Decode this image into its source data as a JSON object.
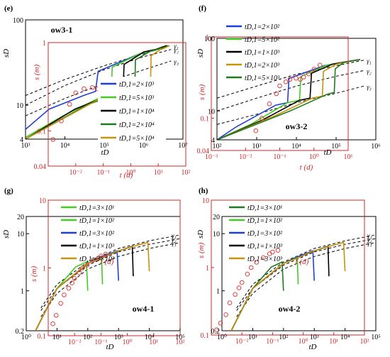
{
  "colors": {
    "red_axis": "#d62728",
    "obs_marker": "#e04040",
    "dashed": "#000000",
    "blue": "#1f3fd8",
    "light_green": "#44cc22",
    "black": "#000000",
    "dark_green": "#1e7a1e",
    "gold": "#c8920a"
  },
  "chart_data": [
    {
      "type": "line",
      "panel_label": "(e)",
      "well_label": "ow3-1",
      "xlabel": "tD",
      "ylabel": "sD",
      "xlim": [
        1000,
        10000000
      ],
      "ylim": [
        4,
        100
      ],
      "log_x": true,
      "log_y": true,
      "x_ticks": [
        "10³",
        "10⁴",
        "10⁵",
        "10⁶",
        "10⁷"
      ],
      "y_ticks": [
        "4",
        "10",
        "100"
      ],
      "secondary_axes": {
        "xlabel": "t (d)",
        "ylabel": "s (m)",
        "xlim": [
          0.001,
          100
        ],
        "ylim": [
          0.04,
          1
        ],
        "x_ticks": [
          "10⁻²",
          "10⁻¹",
          "10⁰",
          "10¹",
          "10²"
        ],
        "y_ticks": [
          "0.04",
          "0.1",
          "1"
        ]
      },
      "legend": [
        {
          "label": "tD,1=2×10³",
          "color": "blue"
        },
        {
          "label": "tD,1=5×10³",
          "color": "light_green"
        },
        {
          "label": "tD,1=1×10⁴",
          "color": "black"
        },
        {
          "label": "tD,1=2×10⁴",
          "color": "dark_green"
        },
        {
          "label": "tD,1=5×10⁴",
          "color": "gold"
        }
      ],
      "curve_labels": [
        "γ₁",
        "γ₂",
        "γ₃"
      ],
      "dashed_curves": [
        {
          "x": [
            1000,
            10000,
            100000,
            1000000,
            5000000
          ],
          "y": [
            13,
            20,
            29,
            40,
            50
          ]
        },
        {
          "x": [
            1000,
            10000,
            100000,
            1000000,
            5000000
          ],
          "y": [
            10,
            17,
            26,
            37,
            45
          ]
        },
        {
          "x": [
            1000,
            10000,
            100000,
            1000000,
            5000000
          ],
          "y": [
            7.5,
            12,
            18,
            26,
            33
          ]
        }
      ],
      "series": [
        {
          "name": "tD,1=2×10³",
          "color": "blue",
          "x": [
            1000,
            4000,
            30000,
            60000,
            70000,
            800000,
            1500000,
            2000000,
            3000000,
            4000000
          ],
          "y": [
            5.2,
            9,
            13,
            14.5,
            25,
            40,
            43,
            44,
            48,
            50
          ]
        },
        {
          "name": "tD,1=5×10³",
          "color": "light_green",
          "x": [
            1000,
            9000,
            100000,
            150000,
            160000,
            800000,
            1500000,
            2000000,
            3000000,
            4000000
          ],
          "y": [
            4.2,
            7.5,
            13,
            14.3,
            28,
            40,
            43,
            44,
            48,
            50
          ]
        },
        {
          "name": "tD,1=1×10⁴",
          "color": "black",
          "x": [
            1000,
            18000,
            200000,
            300000,
            320000,
            1000000,
            2000000,
            3000000,
            4000000
          ],
          "y": [
            4,
            9,
            14,
            15,
            30,
            42,
            45,
            48,
            50
          ]
        },
        {
          "name": "tD,1=2×10⁴",
          "color": "dark_green",
          "x": [
            1000,
            35000,
            400000,
            600000,
            620000,
            1500000,
            2500000,
            3500000,
            4500000
          ],
          "y": [
            4,
            10,
            15,
            16.5,
            34,
            43,
            46,
            48,
            50
          ]
        },
        {
          "name": "tD,1=5×10⁴",
          "color": "gold",
          "x": [
            1000,
            80000,
            1000000,
            1500000,
            1550000,
            2500000,
            3500000,
            4500000
          ],
          "y": [
            4,
            12,
            17,
            18,
            38,
            44,
            47,
            50
          ]
        }
      ],
      "observed": {
        "x_t_days": [
          0.0015,
          0.003,
          0.006,
          0.01,
          0.02,
          0.04,
          0.06,
          0.08,
          0.1,
          0.15,
          0.2,
          0.25,
          0.3,
          0.4
        ],
        "y_s_m": [
          0.08,
          0.13,
          0.2,
          0.27,
          0.3,
          0.31,
          0.3,
          0.32,
          0.34,
          0.35,
          0.35,
          0.33,
          0.3,
          0.28
        ]
      }
    },
    {
      "type": "line",
      "panel_label": "(f)",
      "well_label": "ow3-2",
      "xlabel": "tD",
      "ylabel": "sD",
      "xlim": [
        100,
        1000000
      ],
      "ylim": [
        4,
        100
      ],
      "log_x": true,
      "log_y": true,
      "x_ticks": [
        "10²",
        "10³",
        "10⁴",
        "10⁵",
        "10⁶"
      ],
      "y_ticks": [
        "4",
        "10",
        "100"
      ],
      "secondary_axes": {
        "xlabel": "t (d)",
        "ylabel": "s (m)",
        "xlim": [
          0.001,
          10
        ],
        "ylim": [
          0.04,
          1
        ],
        "x_ticks": [
          "10⁻³",
          "10⁻²",
          "10⁻¹",
          "10⁰",
          "10¹"
        ],
        "y_ticks": [
          "0.04",
          "0.1",
          "1"
        ]
      },
      "legend": [
        {
          "label": "tD,1=2×10²",
          "color": "blue"
        },
        {
          "label": "tD,1=5×10²",
          "color": "light_green"
        },
        {
          "label": "tD,1=1×10³",
          "color": "black"
        },
        {
          "label": "tD,1=2×10³",
          "color": "gold"
        },
        {
          "label": "tD,1=5×10³",
          "color": "dark_green"
        }
      ],
      "curve_labels": [
        "γ₁",
        "γ₂",
        "γ₃"
      ],
      "dashed_curves": [
        {
          "x": [
            100,
            1000,
            10000,
            100000,
            500000
          ],
          "y": [
            15,
            22,
            32,
            42,
            50
          ]
        },
        {
          "x": [
            100,
            1000,
            10000,
            100000,
            500000
          ],
          "y": [
            10,
            15,
            22,
            30,
            36
          ]
        },
        {
          "x": [
            100,
            1000,
            10000,
            100000,
            500000
          ],
          "y": [
            6.5,
            9,
            13,
            17.5,
            22
          ]
        }
      ],
      "series": [
        {
          "name": "tD,1=2×10²",
          "color": "blue",
          "x": [
            100,
            300,
            3000,
            6000,
            6500,
            50000,
            200000,
            400000
          ],
          "y": [
            4,
            6,
            12,
            13,
            28,
            42,
            48,
            51
          ]
        },
        {
          "name": "tD,1=5×10²",
          "color": "light_green",
          "x": [
            100,
            700,
            6000,
            12000,
            13000,
            60000,
            200000,
            400000
          ],
          "y": [
            4,
            6.5,
            13,
            14,
            30,
            43,
            48,
            51
          ]
        },
        {
          "name": "tD,1=1×10³",
          "color": "black",
          "x": [
            100,
            1400,
            12000,
            22000,
            24000,
            80000,
            200000,
            400000
          ],
          "y": [
            4,
            7.5,
            14,
            15,
            33,
            44,
            48,
            51
          ]
        },
        {
          "name": "tD,1=2×10³",
          "color": "gold",
          "x": [
            100,
            2800,
            25000,
            45000,
            48000,
            100000,
            200000,
            400000
          ],
          "y": [
            4,
            8.5,
            15,
            16,
            35,
            44,
            48,
            51
          ]
        },
        {
          "name": "tD,1=5×10³",
          "color": "dark_green",
          "x": [
            100,
            7000,
            60000,
            90000,
            95000,
            150000,
            250000,
            400000
          ],
          "y": [
            4,
            10,
            17,
            18,
            38,
            46,
            49,
            51
          ]
        }
      ],
      "observed": {
        "x_t_days": [
          0.02,
          0.03,
          0.05,
          0.08,
          0.1,
          0.15,
          0.2,
          0.3,
          0.4,
          0.5,
          0.7,
          1.0,
          1.5
        ],
        "y_s_m": [
          0.07,
          0.1,
          0.15,
          0.2,
          0.25,
          0.28,
          0.3,
          0.31,
          0.3,
          0.32,
          0.35,
          0.4,
          0.45
        ]
      }
    },
    {
      "type": "line",
      "panel_label": "(g)",
      "well_label": "ow4-1",
      "xlabel": "tD",
      "ylabel": "sD",
      "xlim": [
        1,
        100000
      ],
      "ylim": [
        0.2,
        20
      ],
      "log_x": true,
      "log_y": true,
      "x_ticks": [
        "10⁰",
        "10¹",
        "10²",
        "10³",
        "10⁴",
        "10⁵"
      ],
      "y_ticks": [
        "0.2",
        "1",
        "10",
        "20"
      ],
      "secondary_axes": {
        "xlabel": "t (d)",
        "ylabel": "s (m)",
        "xlim": [
          0.001,
          100
        ],
        "ylim": [
          0.1,
          10
        ],
        "x_ticks": [
          "10⁻²",
          "10⁻¹",
          "10⁰",
          "10¹",
          "10²"
        ],
        "y_ticks": [
          "0.1",
          "1",
          "10"
        ]
      },
      "legend": [
        {
          "label": "tD,1=3×10¹",
          "color": "light_green"
        },
        {
          "label": "tD,1=1×10²",
          "color": "light_green"
        },
        {
          "label": "tD,1=3×10²",
          "color": "blue"
        },
        {
          "label": "tD,1=1×10³",
          "color": "black"
        },
        {
          "label": "tD,1=3×10³",
          "color": "gold"
        }
      ],
      "curve_labels": [
        "γ₁",
        "γ₂",
        "γ₃"
      ],
      "dashed_curves": [
        {
          "x": [
            3,
            10,
            100,
            1000,
            10000,
            100000
          ],
          "y": [
            0.5,
            1.3,
            3.2,
            5.5,
            7.5,
            9.5
          ]
        },
        {
          "x": [
            3,
            10,
            100,
            1000,
            10000,
            100000
          ],
          "y": [
            0.45,
            1.1,
            2.8,
            4.8,
            6.5,
            8.2
          ]
        },
        {
          "x": [
            3,
            10,
            100,
            1000,
            10000,
            100000
          ],
          "y": [
            0.35,
            0.9,
            2.4,
            4,
            5.5,
            7
          ]
        }
      ],
      "series": [
        {
          "name": "tD,1=3×10¹",
          "color": "light_green",
          "x": [
            2,
            10,
            40,
            90,
            100
          ],
          "y": [
            0.2,
            1.1,
            2.6,
            3.2,
            1.0
          ]
        },
        {
          "name": "tD,1=1×10²",
          "color": "light_green",
          "x": [
            2,
            10,
            100,
            280,
            300
          ],
          "y": [
            0.2,
            1.1,
            3.0,
            4.0,
            1.3
          ]
        },
        {
          "name": "tD,1=3×10²",
          "color": "blue",
          "x": [
            2,
            10,
            100,
            300,
            900,
            1000
          ],
          "y": [
            0.2,
            1.1,
            3.0,
            4.0,
            5.0,
            1.5
          ]
        },
        {
          "name": "tD,1=1×10³",
          "color": "black",
          "x": [
            2,
            10,
            100,
            1000,
            2800,
            3000
          ],
          "y": [
            0.2,
            1.1,
            3.0,
            5.0,
            6.0,
            1.8
          ]
        },
        {
          "name": "tD,1=3×10³",
          "color": "gold",
          "x": [
            2,
            10,
            100,
            1000,
            3000,
            9000,
            10000
          ],
          "y": [
            0.2,
            1.1,
            3.0,
            5.0,
            6.0,
            7.0,
            2.2
          ]
        }
      ],
      "observed": {
        "x_t_days": [
          0.0015,
          0.002,
          0.003,
          0.004,
          0.006,
          0.008,
          0.01,
          0.015,
          0.02,
          0.03,
          0.05,
          0.08,
          0.1,
          0.15
        ],
        "y_s_m": [
          0.15,
          0.2,
          0.3,
          0.4,
          0.5,
          0.6,
          0.7,
          0.85,
          1.0,
          1.1,
          1.3,
          1.4,
          1.5,
          1.6
        ]
      }
    },
    {
      "type": "line",
      "panel_label": "(h)",
      "well_label": "ow4-2",
      "xlabel": "tD",
      "ylabel": "sD",
      "xlim": [
        1,
        100000
      ],
      "ylim": [
        0.2,
        20
      ],
      "log_x": true,
      "log_y": true,
      "x_ticks": [
        "10⁰",
        "10¹",
        "10²",
        "10³",
        "10⁴",
        "10⁵"
      ],
      "y_ticks": [
        "0.2",
        "1",
        "10",
        "20"
      ],
      "secondary_axes": {
        "xlabel": "t (d)",
        "ylabel": "s (m)",
        "xlim": [
          0.001,
          100
        ],
        "ylim": [
          0.1,
          10
        ],
        "x_ticks": [
          "10⁻²",
          "10⁻¹",
          "10⁰",
          "10¹",
          "10²"
        ],
        "y_ticks": [
          "0.1",
          "1",
          "10"
        ]
      },
      "legend": [
        {
          "label": "tD,1=3×10¹",
          "color": "dark_green"
        },
        {
          "label": "tD,1=1×10²",
          "color": "light_green"
        },
        {
          "label": "tD,1=3×10²",
          "color": "blue"
        },
        {
          "label": "tD,1=1×10³",
          "color": "black"
        },
        {
          "label": "tD,1=3×10³",
          "color": "gold"
        }
      ],
      "curve_labels": [
        "γ₁",
        "γ₂",
        "γ₃"
      ],
      "dashed_curves": [
        {
          "x": [
            3,
            10,
            100,
            1000,
            10000,
            100000
          ],
          "y": [
            0.5,
            1.3,
            3.2,
            5.5,
            7.5,
            9.5
          ]
        },
        {
          "x": [
            3,
            10,
            100,
            1000,
            10000,
            100000
          ],
          "y": [
            0.45,
            1.1,
            2.8,
            4.8,
            6.5,
            8.2
          ]
        },
        {
          "x": [
            3,
            10,
            100,
            1000,
            10000,
            100000
          ],
          "y": [
            0.35,
            0.9,
            2.4,
            4,
            5.5,
            7
          ]
        }
      ],
      "series": [
        {
          "name": "tD,1=3×10¹",
          "color": "dark_green",
          "x": [
            2,
            10,
            40,
            90,
            100
          ],
          "y": [
            0.2,
            1.1,
            2.6,
            3.2,
            1.0
          ]
        },
        {
          "name": "tD,1=1×10²",
          "color": "light_green",
          "x": [
            2,
            10,
            100,
            280,
            300
          ],
          "y": [
            0.2,
            1.1,
            3.0,
            4.0,
            1.3
          ]
        },
        {
          "name": "tD,1=3×10²",
          "color": "blue",
          "x": [
            2,
            10,
            100,
            300,
            900,
            1000
          ],
          "y": [
            0.2,
            1.1,
            3.0,
            4.0,
            5.0,
            1.5
          ]
        },
        {
          "name": "tD,1=1×10³",
          "color": "black",
          "x": [
            2,
            10,
            100,
            1000,
            2800,
            3000
          ],
          "y": [
            0.2,
            1.1,
            3.0,
            5.0,
            6.0,
            1.8
          ]
        },
        {
          "name": "tD,1=3×10³",
          "color": "gold",
          "x": [
            2,
            10,
            100,
            1000,
            3000,
            9000,
            10000
          ],
          "y": [
            0.2,
            1.1,
            3.0,
            5.0,
            6.0,
            7.0,
            2.2
          ]
        }
      ],
      "observed": {
        "x_t_days": [
          0.0015,
          0.002,
          0.003,
          0.004,
          0.006,
          0.008,
          0.01,
          0.015,
          0.02,
          0.03,
          0.05,
          0.08,
          0.1,
          0.15
        ],
        "y_s_m": [
          0.12,
          0.15,
          0.2,
          0.3,
          0.4,
          0.5,
          0.6,
          0.8,
          1.0,
          1.2,
          1.4,
          1.6,
          1.7,
          1.8
        ]
      }
    }
  ]
}
